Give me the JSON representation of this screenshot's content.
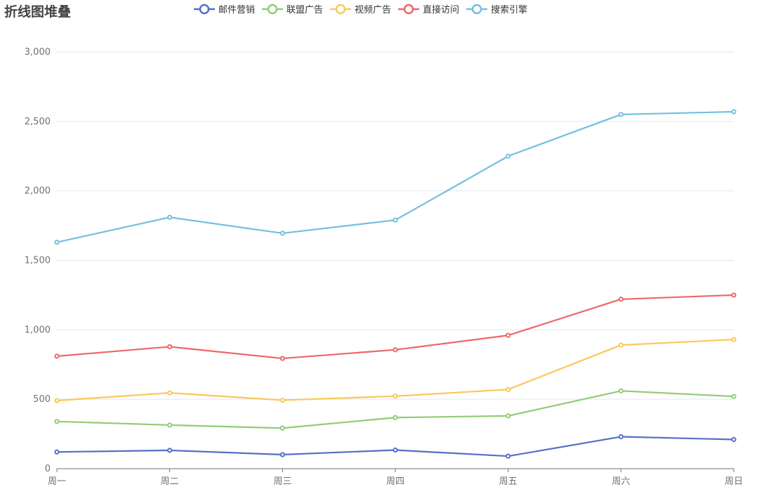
{
  "title": "折线图堆叠",
  "chart_data": {
    "type": "line",
    "stacked": true,
    "title": "折线图堆叠",
    "xlabel": "",
    "ylabel": "",
    "categories": [
      "周一",
      "周二",
      "周三",
      "周四",
      "周五",
      "周六",
      "周日"
    ],
    "ylim": [
      0,
      3000
    ],
    "yticks": [
      0,
      500,
      1000,
      1500,
      2000,
      2500,
      3000
    ],
    "ytick_labels": [
      "0",
      "500",
      "1,000",
      "1,500",
      "2,000",
      "2,500",
      "3,000"
    ],
    "grid": true,
    "legend_position": "top-center",
    "series": [
      {
        "name": "邮件营销",
        "color": "#5470c6",
        "values": [
          120,
          132,
          101,
          134,
          90,
          230,
          210
        ]
      },
      {
        "name": "联盟广告",
        "color": "#91cc75",
        "values": [
          220,
          182,
          191,
          234,
          290,
          330,
          310
        ]
      },
      {
        "name": "视频广告",
        "color": "#fac858",
        "values": [
          150,
          232,
          201,
          154,
          190,
          330,
          410
        ]
      },
      {
        "name": "直接访问",
        "color": "#ee6666",
        "values": [
          320,
          332,
          301,
          334,
          390,
          330,
          320
        ]
      },
      {
        "name": "搜索引擎",
        "color": "#73c0de",
        "values": [
          820,
          932,
          901,
          934,
          1290,
          1330,
          1320
        ]
      }
    ]
  }
}
